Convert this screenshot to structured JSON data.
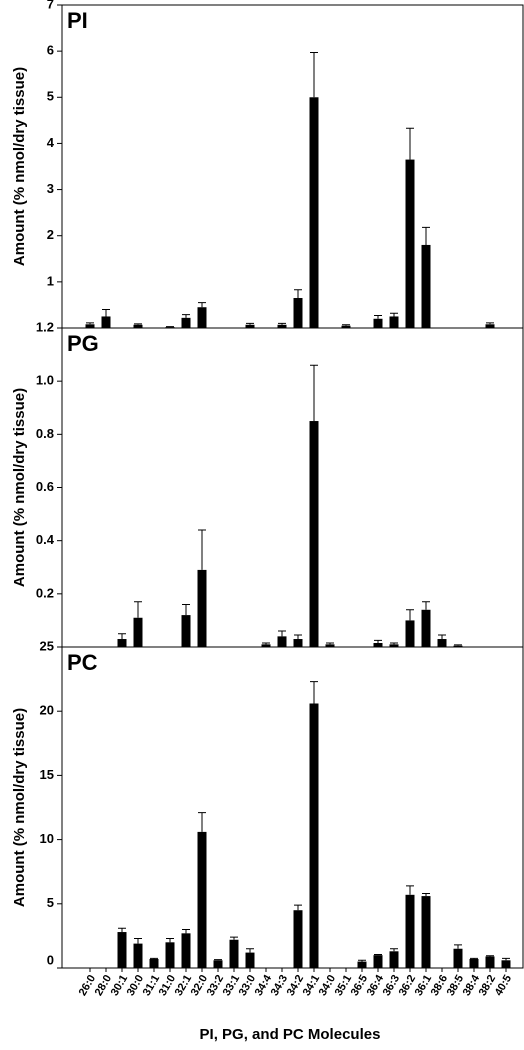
{
  "chart_data": [
    {
      "type": "bar",
      "title": "PI",
      "ylabel": "Amount (% nmol/dry tissue)",
      "color": "#000000",
      "values": [
        0.08,
        0.25,
        null,
        0.07,
        null,
        0.02,
        0.22,
        0.45,
        null,
        null,
        0.07,
        null,
        0.07,
        0.65,
        5.0,
        null,
        0.05,
        null,
        0.2,
        0.25,
        3.65,
        1.8,
        null,
        null,
        null,
        0.08,
        null
      ],
      "errors": [
        0.03,
        0.15,
        null,
        0.02,
        null,
        0.01,
        0.07,
        0.1,
        null,
        null,
        0.03,
        null,
        0.03,
        0.18,
        0.97,
        null,
        0.02,
        null,
        0.07,
        0.07,
        0.68,
        0.38,
        null,
        null,
        null,
        0.03,
        null
      ],
      "ylim": [
        0,
        7
      ],
      "yticks": [
        1,
        2,
        3,
        4,
        5,
        6,
        7
      ]
    },
    {
      "type": "bar",
      "title": "PG",
      "ylabel": "Amount (% nmol/dry tissue)",
      "color": "#000000",
      "values": [
        null,
        null,
        0.03,
        0.11,
        null,
        null,
        0.12,
        0.29,
        null,
        null,
        null,
        0.01,
        0.04,
        0.03,
        0.85,
        0.01,
        null,
        null,
        0.015,
        0.01,
        0.1,
        0.14,
        0.03,
        0.005,
        null,
        null,
        null
      ],
      "errors": [
        null,
        null,
        0.02,
        0.06,
        null,
        null,
        0.04,
        0.15,
        null,
        null,
        null,
        0.005,
        0.02,
        0.015,
        0.21,
        0.005,
        null,
        null,
        0.01,
        0.005,
        0.04,
        0.03,
        0.015,
        0.003,
        null,
        null,
        null
      ],
      "ylim": [
        0,
        1.2
      ],
      "yticks": [
        0.2,
        0.4,
        0.6,
        0.8,
        {
          "value": 1,
          "label": "1.0"
        },
        1.2
      ]
    },
    {
      "type": "bar",
      "title": "PC",
      "ylabel": "Amount (% nmol/dry tissue)",
      "xlabel": "PI, PG, and PC Molecules",
      "color": "#000000",
      "categories": [
        "26:0",
        "28:0",
        "30:1",
        "30:0",
        "31:1",
        "31:0",
        "32:1",
        "32:0",
        "33:2",
        "33:1",
        "33:0",
        "34:4",
        "34:3",
        "34:2",
        "34:1",
        "34:0",
        "35:1",
        "36:5",
        "36:4",
        "36:3",
        "36:2",
        "36:1",
        "38:6",
        "38:5",
        "38:4",
        "38:2",
        "40:5"
      ],
      "values": [
        null,
        null,
        2.8,
        1.9,
        0.7,
        2.0,
        2.7,
        10.6,
        0.6,
        2.2,
        1.2,
        null,
        null,
        4.5,
        20.6,
        null,
        null,
        0.5,
        1.0,
        1.3,
        5.7,
        5.6,
        null,
        1.5,
        0.7,
        0.9,
        0.6
      ],
      "errors": [
        null,
        null,
        0.3,
        0.4,
        0.05,
        0.3,
        0.3,
        1.5,
        0.05,
        0.2,
        0.3,
        null,
        null,
        0.4,
        1.7,
        null,
        null,
        0.1,
        0.05,
        0.2,
        0.7,
        0.2,
        null,
        0.3,
        0.05,
        0.05,
        0.15
      ],
      "ylim": [
        0,
        25
      ],
      "yticks": [
        0,
        5,
        10,
        15,
        20,
        25
      ]
    }
  ]
}
